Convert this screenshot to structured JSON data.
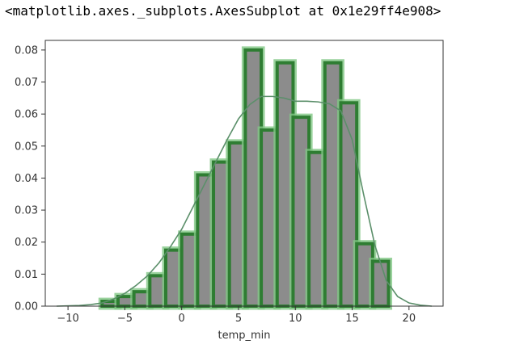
{
  "output_repr": "<matplotlib.axes._subplots.AxesSubplot at 0x1e29ff4e908>",
  "colors": {
    "bar_fill": "#8c8c8c",
    "bar_edge_core": "#2e7d32",
    "bar_edge_halo": "#81c784",
    "kde_line": "#5b8f6a",
    "axis": "#333333",
    "tick_text": "#333333"
  },
  "chart_data": {
    "type": "bar",
    "subtype": "histogram-with-kde",
    "xlabel": "temp_min",
    "ylabel": "",
    "title": "",
    "xlim": [
      -12,
      23
    ],
    "ylim": [
      0,
      0.083
    ],
    "grid": false,
    "legend": "none",
    "xticks": [
      -10,
      -5,
      0,
      5,
      10,
      15,
      20
    ],
    "xtick_labels": [
      "−10",
      "−5",
      "0",
      "5",
      "10",
      "15",
      "20"
    ],
    "yticks": [
      0.0,
      0.01,
      0.02,
      0.03,
      0.04,
      0.05,
      0.06,
      0.07,
      0.08
    ],
    "ytick_labels": [
      "0.00",
      "0.01",
      "0.02",
      "0.03",
      "0.04",
      "0.05",
      "0.06",
      "0.07",
      "0.08"
    ],
    "bins": {
      "edges": [
        -7.0,
        -5.6,
        -4.2,
        -2.8,
        -1.4,
        0.0,
        1.4,
        2.8,
        4.2,
        5.6,
        7.0,
        8.4,
        9.8,
        11.2,
        12.6,
        14.0,
        15.4,
        16.8,
        18.2
      ],
      "values": [
        0.0015,
        0.003,
        0.0045,
        0.0095,
        0.0175,
        0.0225,
        0.041,
        0.045,
        0.051,
        0.08,
        0.055,
        0.076,
        0.059,
        0.048,
        0.076,
        0.0635,
        0.0195,
        0.014
      ]
    },
    "kde": {
      "x": [
        -11,
        -9,
        -8,
        -7,
        -6,
        -5,
        -4,
        -3,
        -2,
        -1,
        0,
        1,
        2,
        3,
        4,
        5,
        6,
        7,
        8,
        9,
        10,
        11,
        12,
        13,
        14,
        15,
        16,
        17,
        18,
        19,
        20,
        21,
        22
      ],
      "y": [
        0.0,
        0.0002,
        0.0005,
        0.001,
        0.0022,
        0.004,
        0.0065,
        0.0095,
        0.0135,
        0.0185,
        0.024,
        0.031,
        0.038,
        0.045,
        0.052,
        0.0585,
        0.063,
        0.0655,
        0.0655,
        0.065,
        0.064,
        0.064,
        0.0638,
        0.0632,
        0.061,
        0.052,
        0.035,
        0.019,
        0.008,
        0.003,
        0.001,
        0.0003,
        0.0
      ]
    }
  }
}
